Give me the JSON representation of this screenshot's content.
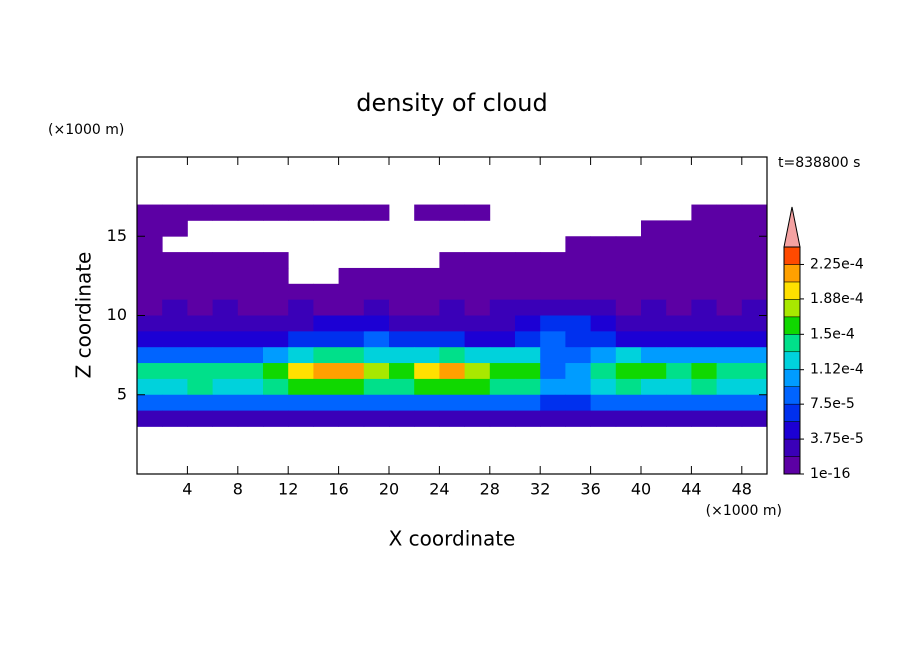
{
  "chart_data": {
    "type": "contour",
    "title": "density of cloud",
    "xlabel": "X coordinate",
    "ylabel": "Z coordinate",
    "x_unit": "(×1000 m)",
    "y_unit": "(×1000 m)",
    "time_label": "t=838800 s",
    "xlim": [
      0,
      50
    ],
    "ylim": [
      0,
      20
    ],
    "xticks": [
      4,
      8,
      12,
      16,
      20,
      24,
      28,
      32,
      36,
      40,
      44,
      48
    ],
    "yticks": [
      5,
      10,
      15
    ],
    "x": [
      1,
      3,
      5,
      7,
      9,
      11,
      13,
      15,
      17,
      19,
      21,
      23,
      25,
      27,
      29,
      31,
      33,
      35,
      37,
      39,
      41,
      43,
      45,
      47,
      49
    ],
    "z": [
      16.5,
      15.5,
      14.5,
      13.5,
      12.5,
      11.5,
      10.5,
      9.5,
      8.5,
      7.5,
      6.5,
      5.5,
      4.5,
      3.5
    ],
    "values": [
      [
        5e-06,
        5e-06,
        5e-06,
        5e-06,
        5e-06,
        5e-06,
        5e-06,
        5e-06,
        5e-06,
        5e-06,
        null,
        5e-06,
        5e-06,
        5e-06,
        null,
        null,
        null,
        null,
        null,
        null,
        null,
        null,
        5e-06,
        5e-06,
        5e-06
      ],
      [
        5e-06,
        5e-06,
        null,
        null,
        null,
        null,
        null,
        null,
        null,
        null,
        null,
        null,
        null,
        null,
        null,
        null,
        null,
        null,
        null,
        null,
        5e-06,
        5e-06,
        5e-06,
        5e-06,
        5e-06
      ],
      [
        5e-06,
        null,
        null,
        null,
        null,
        null,
        null,
        null,
        null,
        null,
        null,
        null,
        null,
        null,
        null,
        null,
        null,
        5e-06,
        5e-06,
        5e-06,
        5e-06,
        5e-06,
        5e-06,
        5e-06,
        5e-06
      ],
      [
        5e-06,
        5e-06,
        5e-06,
        5e-06,
        5e-06,
        5e-06,
        null,
        null,
        null,
        null,
        null,
        null,
        5e-06,
        5e-06,
        5e-06,
        5e-06,
        5e-06,
        5e-06,
        5e-06,
        5e-06,
        5e-06,
        5e-06,
        5e-06,
        5e-06,
        5e-06
      ],
      [
        5e-06,
        5e-06,
        5e-06,
        5e-06,
        5e-06,
        5e-06,
        null,
        null,
        5e-06,
        5e-06,
        5e-06,
        5e-06,
        5e-06,
        5e-06,
        5e-06,
        5e-06,
        5e-06,
        5e-06,
        5e-06,
        5e-06,
        5e-06,
        5e-06,
        5e-06,
        5e-06,
        5e-06
      ],
      [
        8e-06,
        8e-06,
        8e-06,
        1.2e-05,
        8e-06,
        8e-06,
        8e-06,
        8e-06,
        8e-06,
        8e-06,
        8e-06,
        8e-06,
        8e-06,
        8e-06,
        8e-06,
        1.2e-05,
        1.2e-05,
        8e-06,
        8e-06,
        8e-06,
        8e-06,
        8e-06,
        8e-06,
        8e-06,
        8e-06
      ],
      [
        1.5e-05,
        2e-05,
        1.5e-05,
        2e-05,
        1.5e-05,
        1.5e-05,
        2e-05,
        1.5e-05,
        1.5e-05,
        2e-05,
        1.5e-05,
        1.5e-05,
        2e-05,
        1.5e-05,
        2e-05,
        2.5e-05,
        3e-05,
        2.5e-05,
        2e-05,
        1.5e-05,
        2e-05,
        1.5e-05,
        2e-05,
        1.5e-05,
        2e-05
      ],
      [
        3e-05,
        2.5e-05,
        3e-05,
        3.5e-05,
        3e-05,
        3e-05,
        3.5e-05,
        4e-05,
        4e-05,
        4e-05,
        3.5e-05,
        3e-05,
        3.5e-05,
        3e-05,
        3e-05,
        5e-05,
        6e-05,
        6e-05,
        4e-05,
        3.5e-05,
        3e-05,
        3e-05,
        3.5e-05,
        3e-05,
        3e-05
      ],
      [
        4.5e-05,
        4e-05,
        5e-05,
        4.5e-05,
        5e-05,
        5.5e-05,
        6e-05,
        6.5e-05,
        7e-05,
        7.5e-05,
        7e-05,
        6e-05,
        6e-05,
        5.5e-05,
        5.5e-05,
        6e-05,
        8e-05,
        7e-05,
        6e-05,
        5.5e-05,
        5e-05,
        5e-05,
        5e-05,
        4.5e-05,
        5e-05
      ],
      [
        9e-05,
        9e-05,
        9e-05,
        9e-05,
        9e-05,
        0.00011,
        0.00013,
        0.000135,
        0.000135,
        0.00013,
        0.000125,
        0.00013,
        0.000135,
        0.00013,
        0.00012,
        0.00012,
        8e-05,
        8e-05,
        0.00011,
        0.000115,
        0.00011,
        0.00011,
        0.000105,
        0.00011,
        0.00011
      ],
      [
        0.00014,
        0.000145,
        0.00014,
        0.000145,
        0.00014,
        0.00016,
        0.00019,
        0.00021,
        0.00022,
        0.00018,
        0.00015,
        0.0002,
        0.00022,
        0.00017,
        0.00015,
        0.00015,
        9e-05,
        0.00011,
        0.00014,
        0.00016,
        0.00016,
        0.00014,
        0.00015,
        0.00014,
        0.00014
      ],
      [
        0.00013,
        0.00013,
        0.000135,
        0.00013,
        0.00013,
        0.00014,
        0.00015,
        0.000155,
        0.00015,
        0.000145,
        0.00014,
        0.00015,
        0.000155,
        0.00015,
        0.00014,
        0.000135,
        0.0001,
        0.00011,
        0.00013,
        0.000135,
        0.00013,
        0.00013,
        0.000135,
        0.00013,
        0.00013
      ],
      [
        8e-05,
        8e-05,
        8.5e-05,
        8e-05,
        8e-05,
        8.5e-05,
        9e-05,
        9e-05,
        9e-05,
        8.5e-05,
        9e-05,
        9e-05,
        9e-05,
        8.5e-05,
        8e-05,
        8e-05,
        7e-05,
        7e-05,
        8e-05,
        7.5e-05,
        8e-05,
        8e-05,
        8e-05,
        8e-05,
        8e-05
      ],
      [
        2.5e-05,
        2.5e-05,
        3e-05,
        2.5e-05,
        3e-05,
        3e-05,
        3e-05,
        3e-05,
        2.5e-05,
        3e-05,
        2.5e-05,
        3e-05,
        3e-05,
        2.5e-05,
        2.5e-05,
        2.5e-05,
        2.5e-05,
        2.5e-05,
        3e-05,
        3e-05,
        2.5e-05,
        2.5e-05,
        3e-05,
        2.5e-05,
        2.5e-05
      ]
    ],
    "colorbar": {
      "levels": [
        1e-16,
        1.875e-05,
        3.75e-05,
        5.625e-05,
        7.5e-05,
        9.375e-05,
        0.0001125,
        0.00013125,
        0.00015,
        0.00016875,
        0.0001875,
        0.00020625,
        0.000225,
        0.00024375
      ],
      "colors": [
        "#5c00a4",
        "#3a00b8",
        "#1c00d4",
        "#0030ee",
        "#0064ff",
        "#009cff",
        "#00d2dc",
        "#00e08a",
        "#10d800",
        "#a8e800",
        "#ffe000",
        "#ffa000",
        "#ff4a00"
      ],
      "over_color": "#f4a2a2",
      "ticks": [
        {
          "value": 1e-16,
          "label": "1e-16"
        },
        {
          "value": 3.75e-05,
          "label": "3.75e-5"
        },
        {
          "value": 7.5e-05,
          "label": "7.5e-5"
        },
        {
          "value": 0.000112,
          "label": "1.12e-4"
        },
        {
          "value": 0.00015,
          "label": "1.5e-4"
        },
        {
          "value": 0.000188,
          "label": "1.88e-4"
        },
        {
          "value": 0.000225,
          "label": "2.25e-4"
        }
      ]
    }
  }
}
